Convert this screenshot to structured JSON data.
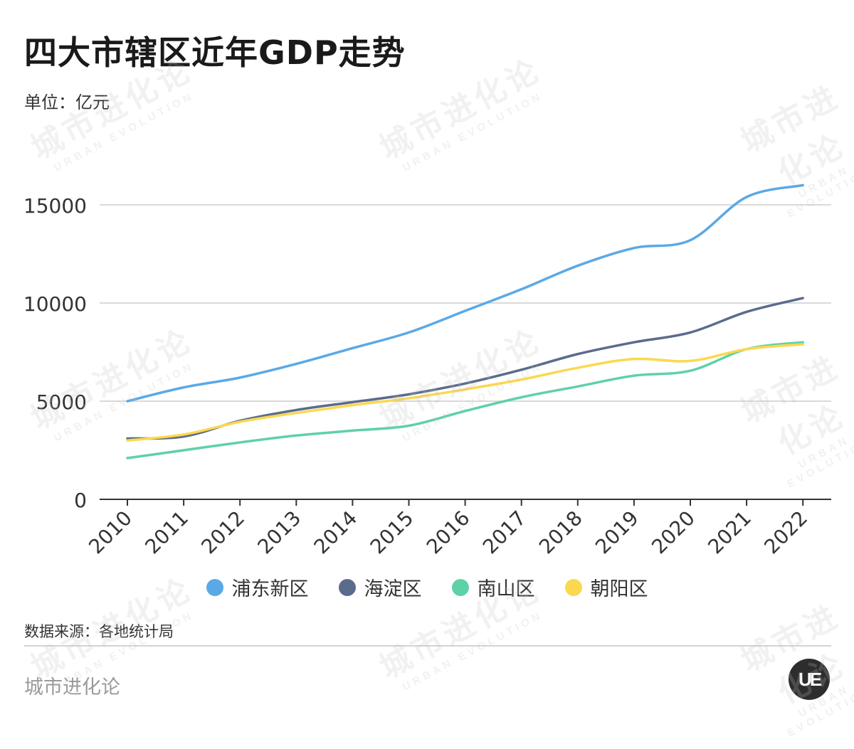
{
  "title": "四大市辖区近年GDP走势",
  "unit": "单位：亿元",
  "source": "数据来源：各地统计局",
  "brand": "城市进化论",
  "logo_text": "UE",
  "watermark": {
    "cn": "城市进化论",
    "en": "URBAN EVOLUTION"
  },
  "chart_data": {
    "type": "line",
    "categories": [
      "2010",
      "2011",
      "2012",
      "2013",
      "2014",
      "2015",
      "2016",
      "2017",
      "2018",
      "2019",
      "2020",
      "2021",
      "2022"
    ],
    "ylim": [
      0,
      17000
    ],
    "yticks": [
      0,
      5000,
      10000,
      15000
    ],
    "grid": true,
    "legend_position": "bottom",
    "series": [
      {
        "name": "浦东新区",
        "color": "#5aa9e6",
        "values": [
          5000,
          5700,
          6200,
          6900,
          7700,
          8500,
          9600,
          10700,
          11900,
          12800,
          13200,
          15400,
          16000
        ]
      },
      {
        "name": "海淀区",
        "color": "#5b6b8c",
        "values": [
          3100,
          3200,
          4000,
          4550,
          4950,
          5350,
          5900,
          6600,
          7400,
          8000,
          8500,
          9550,
          10250
        ]
      },
      {
        "name": "南山区",
        "color": "#5fd1a7",
        "values": [
          2100,
          2500,
          2900,
          3250,
          3500,
          3750,
          4500,
          5200,
          5750,
          6300,
          6550,
          7650,
          8000
        ]
      },
      {
        "name": "朝阳区",
        "color": "#fbd84f",
        "values": [
          3000,
          3300,
          3950,
          4400,
          4800,
          5150,
          5600,
          6100,
          6700,
          7150,
          7050,
          7650,
          7900
        ]
      }
    ]
  }
}
